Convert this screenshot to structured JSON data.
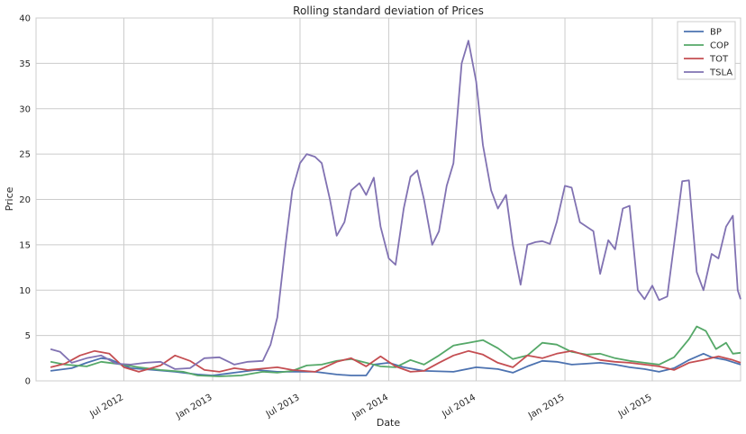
{
  "chart_data": {
    "type": "line",
    "title": "Rolling standard deviation of Prices",
    "xlabel": "Date",
    "ylabel": "Price",
    "ylim": [
      0,
      40
    ],
    "xlim": [
      "2012-01-01",
      "2015-12-31"
    ],
    "yticks": [
      0,
      5,
      10,
      15,
      20,
      25,
      30,
      35,
      40
    ],
    "xticks": [
      {
        "date": "2012-07-01",
        "label": "Jul 2012"
      },
      {
        "date": "2013-01-01",
        "label": "Jan 2013"
      },
      {
        "date": "2013-07-01",
        "label": "Jul 2013"
      },
      {
        "date": "2014-01-01",
        "label": "Jan 2014"
      },
      {
        "date": "2014-07-01",
        "label": "Jul 2014"
      },
      {
        "date": "2015-01-01",
        "label": "Jan 2015"
      },
      {
        "date": "2015-07-01",
        "label": "Jul 2015"
      }
    ],
    "grid": true,
    "legend": "top-right",
    "series": [
      {
        "name": "BP",
        "color": "#4c72b0",
        "points": [
          [
            "2012-01-31",
            1.1
          ],
          [
            "2012-03-15",
            1.4
          ],
          [
            "2012-04-15",
            2.0
          ],
          [
            "2012-05-15",
            2.5
          ],
          [
            "2012-06-01",
            2.4
          ],
          [
            "2012-07-15",
            1.4
          ],
          [
            "2012-09-01",
            1.2
          ],
          [
            "2012-10-15",
            1.0
          ],
          [
            "2012-12-01",
            0.7
          ],
          [
            "2013-01-01",
            0.6
          ],
          [
            "2013-02-15",
            0.9
          ],
          [
            "2013-04-01",
            1.2
          ],
          [
            "2013-05-15",
            1.0
          ],
          [
            "2013-06-15",
            1.0
          ],
          [
            "2013-08-01",
            1.0
          ],
          [
            "2013-09-15",
            0.7
          ],
          [
            "2013-10-15",
            0.6
          ],
          [
            "2013-11-15",
            0.6
          ],
          [
            "2013-12-01",
            1.8
          ],
          [
            "2014-01-01",
            2.0
          ],
          [
            "2014-02-01",
            1.5
          ],
          [
            "2014-03-15",
            1.1
          ],
          [
            "2014-05-15",
            1.0
          ],
          [
            "2014-07-01",
            1.5
          ],
          [
            "2014-08-15",
            1.3
          ],
          [
            "2014-09-15",
            0.9
          ],
          [
            "2014-10-15",
            1.6
          ],
          [
            "2014-11-15",
            2.2
          ],
          [
            "2014-12-15",
            2.1
          ],
          [
            "2015-01-15",
            1.8
          ],
          [
            "2015-02-15",
            1.9
          ],
          [
            "2015-03-15",
            2.0
          ],
          [
            "2015-04-15",
            1.8
          ],
          [
            "2015-05-15",
            1.5
          ],
          [
            "2015-06-15",
            1.3
          ],
          [
            "2015-07-15",
            1.0
          ],
          [
            "2015-08-15",
            1.4
          ],
          [
            "2015-09-15",
            2.3
          ],
          [
            "2015-10-15",
            3.0
          ],
          [
            "2015-11-01",
            2.6
          ],
          [
            "2015-12-01",
            2.3
          ],
          [
            "2015-12-31",
            1.8
          ]
        ]
      },
      {
        "name": "COP",
        "color": "#55a868",
        "points": [
          [
            "2012-01-31",
            2.1
          ],
          [
            "2012-03-01",
            1.8
          ],
          [
            "2012-04-15",
            1.6
          ],
          [
            "2012-05-15",
            2.1
          ],
          [
            "2012-06-15",
            1.9
          ],
          [
            "2012-08-01",
            1.5
          ],
          [
            "2012-09-15",
            1.2
          ],
          [
            "2012-11-01",
            1.0
          ],
          [
            "2012-12-01",
            0.6
          ],
          [
            "2013-01-15",
            0.5
          ],
          [
            "2013-03-01",
            0.6
          ],
          [
            "2013-04-15",
            1.0
          ],
          [
            "2013-05-15",
            0.9
          ],
          [
            "2013-06-15",
            1.1
          ],
          [
            "2013-07-15",
            1.7
          ],
          [
            "2013-08-15",
            1.8
          ],
          [
            "2013-09-15",
            2.2
          ],
          [
            "2013-10-15",
            2.4
          ],
          [
            "2013-11-15",
            2.0
          ],
          [
            "2013-12-15",
            1.6
          ],
          [
            "2014-01-15",
            1.5
          ],
          [
            "2014-02-15",
            2.3
          ],
          [
            "2014-03-15",
            1.8
          ],
          [
            "2014-04-15",
            2.8
          ],
          [
            "2014-05-15",
            3.9
          ],
          [
            "2014-06-15",
            4.2
          ],
          [
            "2014-07-15",
            4.5
          ],
          [
            "2014-08-15",
            3.6
          ],
          [
            "2014-09-15",
            2.4
          ],
          [
            "2014-10-15",
            2.8
          ],
          [
            "2014-11-15",
            4.2
          ],
          [
            "2014-12-15",
            4.0
          ],
          [
            "2015-01-15",
            3.2
          ],
          [
            "2015-02-15",
            2.9
          ],
          [
            "2015-03-15",
            3.0
          ],
          [
            "2015-04-15",
            2.5
          ],
          [
            "2015-05-15",
            2.2
          ],
          [
            "2015-06-15",
            2.0
          ],
          [
            "2015-07-15",
            1.8
          ],
          [
            "2015-08-15",
            2.6
          ],
          [
            "2015-09-15",
            4.6
          ],
          [
            "2015-10-01",
            6.0
          ],
          [
            "2015-10-20",
            5.5
          ],
          [
            "2015-11-10",
            3.5
          ],
          [
            "2015-12-01",
            4.2
          ],
          [
            "2015-12-15",
            3.0
          ],
          [
            "2015-12-31",
            3.1
          ]
        ]
      },
      {
        "name": "TOT",
        "color": "#c44e52",
        "points": [
          [
            "2012-01-31",
            1.5
          ],
          [
            "2012-03-01",
            1.9
          ],
          [
            "2012-04-01",
            2.8
          ],
          [
            "2012-05-01",
            3.3
          ],
          [
            "2012-06-01",
            3.0
          ],
          [
            "2012-07-01",
            1.5
          ],
          [
            "2012-08-01",
            1.0
          ],
          [
            "2012-09-15",
            1.7
          ],
          [
            "2012-10-15",
            2.8
          ],
          [
            "2012-11-15",
            2.2
          ],
          [
            "2012-12-15",
            1.2
          ],
          [
            "2013-01-15",
            1.0
          ],
          [
            "2013-02-15",
            1.4
          ],
          [
            "2013-03-15",
            1.2
          ],
          [
            "2013-05-15",
            1.5
          ],
          [
            "2013-06-15",
            1.2
          ],
          [
            "2013-08-01",
            1.0
          ],
          [
            "2013-09-15",
            2.1
          ],
          [
            "2013-10-15",
            2.5
          ],
          [
            "2013-11-15",
            1.6
          ],
          [
            "2013-12-15",
            2.7
          ],
          [
            "2014-01-15",
            1.6
          ],
          [
            "2014-02-15",
            1.0
          ],
          [
            "2014-03-15",
            1.1
          ],
          [
            "2014-04-15",
            2.0
          ],
          [
            "2014-05-15",
            2.8
          ],
          [
            "2014-06-15",
            3.3
          ],
          [
            "2014-07-15",
            2.9
          ],
          [
            "2014-08-15",
            2.0
          ],
          [
            "2014-09-15",
            1.5
          ],
          [
            "2014-10-15",
            2.8
          ],
          [
            "2014-11-15",
            2.5
          ],
          [
            "2014-12-15",
            3.0
          ],
          [
            "2015-01-15",
            3.3
          ],
          [
            "2015-02-15",
            2.8
          ],
          [
            "2015-03-15",
            2.3
          ],
          [
            "2015-04-15",
            2.1
          ],
          [
            "2015-05-15",
            2.0
          ],
          [
            "2015-06-15",
            1.8
          ],
          [
            "2015-07-15",
            1.6
          ],
          [
            "2015-08-15",
            1.2
          ],
          [
            "2015-09-15",
            2.0
          ],
          [
            "2015-10-15",
            2.3
          ],
          [
            "2015-11-15",
            2.7
          ],
          [
            "2015-12-15",
            2.3
          ],
          [
            "2015-12-31",
            2.0
          ]
        ]
      },
      {
        "name": "TSLA",
        "color": "#8172b2",
        "points": [
          [
            "2012-01-31",
            3.5
          ],
          [
            "2012-02-20",
            3.2
          ],
          [
            "2012-03-15",
            2.0
          ],
          [
            "2012-04-15",
            2.5
          ],
          [
            "2012-05-15",
            2.8
          ],
          [
            "2012-06-15",
            1.9
          ],
          [
            "2012-07-15",
            1.8
          ],
          [
            "2012-08-15",
            2.0
          ],
          [
            "2012-09-15",
            2.1
          ],
          [
            "2012-10-15",
            1.3
          ],
          [
            "2012-11-15",
            1.4
          ],
          [
            "2012-12-15",
            2.5
          ],
          [
            "2013-01-15",
            2.6
          ],
          [
            "2013-02-15",
            1.8
          ],
          [
            "2013-03-15",
            2.1
          ],
          [
            "2013-04-15",
            2.2
          ],
          [
            "2013-05-01",
            4.0
          ],
          [
            "2013-05-15",
            7.0
          ],
          [
            "2013-06-01",
            15.0
          ],
          [
            "2013-06-15",
            21.0
          ],
          [
            "2013-07-01",
            24.0
          ],
          [
            "2013-07-15",
            25.0
          ],
          [
            "2013-08-01",
            24.7
          ],
          [
            "2013-08-15",
            24.0
          ],
          [
            "2013-09-01",
            20.0
          ],
          [
            "2013-09-15",
            16.0
          ],
          [
            "2013-10-01",
            17.5
          ],
          [
            "2013-10-15",
            21.0
          ],
          [
            "2013-11-01",
            21.8
          ],
          [
            "2013-11-15",
            20.5
          ],
          [
            "2013-12-01",
            22.4
          ],
          [
            "2013-12-15",
            17.0
          ],
          [
            "2014-01-01",
            13.5
          ],
          [
            "2014-01-15",
            12.8
          ],
          [
            "2014-02-01",
            19.0
          ],
          [
            "2014-02-15",
            22.5
          ],
          [
            "2014-03-01",
            23.2
          ],
          [
            "2014-03-15",
            20.0
          ],
          [
            "2014-04-01",
            15.0
          ],
          [
            "2014-04-15",
            16.5
          ],
          [
            "2014-05-01",
            21.5
          ],
          [
            "2014-05-15",
            24.0
          ],
          [
            "2014-06-01",
            35.0
          ],
          [
            "2014-06-15",
            37.5
          ],
          [
            "2014-07-01",
            33.0
          ],
          [
            "2014-07-15",
            26.0
          ],
          [
            "2014-08-01",
            21.0
          ],
          [
            "2014-08-15",
            19.0
          ],
          [
            "2014-09-01",
            20.5
          ],
          [
            "2014-09-15",
            15.0
          ],
          [
            "2014-10-01",
            10.6
          ],
          [
            "2014-10-15",
            15.0
          ],
          [
            "2014-11-01",
            15.3
          ],
          [
            "2014-11-15",
            15.4
          ],
          [
            "2014-12-01",
            15.1
          ],
          [
            "2014-12-15",
            17.5
          ],
          [
            "2015-01-01",
            21.5
          ],
          [
            "2015-01-15",
            21.3
          ],
          [
            "2015-02-01",
            17.5
          ],
          [
            "2015-02-15",
            17.0
          ],
          [
            "2015-03-01",
            16.5
          ],
          [
            "2015-03-15",
            11.8
          ],
          [
            "2015-04-01",
            15.5
          ],
          [
            "2015-04-15",
            14.5
          ],
          [
            "2015-05-01",
            19.0
          ],
          [
            "2015-05-15",
            19.3
          ],
          [
            "2015-06-01",
            10.0
          ],
          [
            "2015-06-15",
            9.0
          ],
          [
            "2015-07-01",
            10.5
          ],
          [
            "2015-07-15",
            8.9
          ],
          [
            "2015-08-01",
            9.3
          ],
          [
            "2015-08-15",
            15.0
          ],
          [
            "2015-09-01",
            22.0
          ],
          [
            "2015-09-15",
            22.1
          ],
          [
            "2015-10-01",
            12.0
          ],
          [
            "2015-10-15",
            10.0
          ],
          [
            "2015-11-01",
            14.0
          ],
          [
            "2015-11-15",
            13.5
          ],
          [
            "2015-12-01",
            17.0
          ],
          [
            "2015-12-15",
            18.2
          ],
          [
            "2015-12-25",
            10.0
          ],
          [
            "2015-12-31",
            9.0
          ]
        ]
      }
    ]
  }
}
